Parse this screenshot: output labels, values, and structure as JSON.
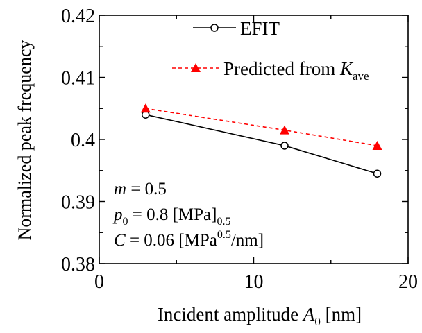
{
  "chart_data": {
    "type": "line",
    "xlabel": "Incident amplitude",
    "xlabel_symbol": "A",
    "xlabel_sub": "0",
    "xlabel_unit": "[nm]",
    "ylabel": "Normalized peak frequency",
    "xlim": [
      0,
      20
    ],
    "ylim": [
      0.38,
      0.42
    ],
    "xticks": [
      0,
      10,
      20
    ],
    "xtick_labels": [
      "0",
      "10",
      "20"
    ],
    "yticks": [
      0.38,
      0.39,
      0.4,
      0.41,
      0.42
    ],
    "ytick_labels": [
      "0.38",
      "0.39",
      "0.4",
      "0.41",
      "0.42"
    ],
    "grid": false,
    "legend_position": "top-right",
    "series": [
      {
        "name": "EFIT",
        "x": [
          3,
          12,
          18
        ],
        "y": [
          0.404,
          0.399,
          0.3945
        ],
        "color": "#000000",
        "line_style": "solid",
        "marker": "open-circle"
      },
      {
        "name": "Predicted from",
        "name_symbol": "K",
        "name_sub": "ave",
        "x": [
          3,
          12,
          18
        ],
        "y": [
          0.405,
          0.4015,
          0.399
        ],
        "color": "#ff0000",
        "line_style": "dashed",
        "marker": "filled-triangle"
      }
    ],
    "annotations": [
      {
        "symbol": "m",
        "text": " = 0.5"
      },
      {
        "symbol": "p",
        "sub": "0",
        "text": " = 0.8 [MPa]",
        "sup_after": "0.5"
      },
      {
        "symbol": "C",
        "text": " = 0.06 [MPa",
        "sup": "0.5",
        "text_after": "/nm]"
      }
    ]
  }
}
